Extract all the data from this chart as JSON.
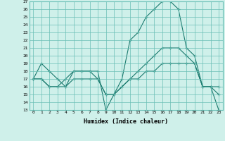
{
  "xlabel": "Humidex (Indice chaleur)",
  "bg_color": "#cff0ea",
  "grid_color": "#6abfb5",
  "line_color": "#1a7a6e",
  "x": [
    0,
    1,
    2,
    3,
    4,
    5,
    6,
    7,
    8,
    9,
    10,
    11,
    12,
    13,
    14,
    15,
    16,
    17,
    18,
    19,
    20,
    21,
    22,
    23
  ],
  "line1": [
    17,
    19,
    18,
    17,
    16,
    18,
    18,
    18,
    18,
    13,
    15,
    17,
    22,
    23,
    25,
    26,
    27,
    27,
    26,
    21,
    20,
    16,
    16,
    16
  ],
  "line2": [
    17,
    17,
    16,
    16,
    16,
    17,
    17,
    17,
    17,
    15,
    15,
    16,
    17,
    18,
    19,
    20,
    21,
    21,
    21,
    20,
    19,
    16,
    16,
    13
  ],
  "line3": [
    17,
    17,
    16,
    16,
    17,
    18,
    18,
    18,
    17,
    15,
    15,
    16,
    17,
    17,
    18,
    18,
    19,
    19,
    19,
    19,
    19,
    16,
    16,
    15
  ],
  "ylim": [
    13,
    27
  ],
  "yticks": [
    13,
    14,
    15,
    16,
    17,
    18,
    19,
    20,
    21,
    22,
    23,
    24,
    25,
    26,
    27
  ],
  "xticks": [
    0,
    1,
    2,
    3,
    4,
    5,
    6,
    7,
    8,
    9,
    10,
    11,
    12,
    13,
    14,
    15,
    16,
    17,
    18,
    19,
    20,
    21,
    22,
    23
  ]
}
